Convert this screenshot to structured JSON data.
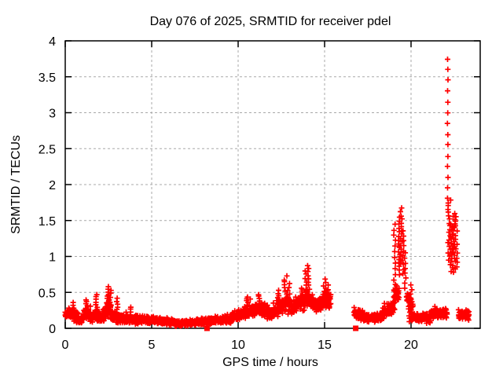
{
  "window": {
    "background": "#ffffff"
  },
  "chart_data": {
    "type": "scatter",
    "title": "Day 076 of 2025, SRMTID for receiver pdel",
    "xlabel": "GPS time / hours",
    "ylabel": "SRMTID / TECUs",
    "xlim": [
      0,
      24
    ],
    "ylim": [
      0,
      4
    ],
    "xticks": [
      0,
      5,
      10,
      15,
      20
    ],
    "xtick_labels": [
      "0",
      "5",
      "10",
      "15",
      "20"
    ],
    "yticks": [
      0,
      0.5,
      1,
      1.5,
      2,
      2.5,
      3,
      3.5,
      4
    ],
    "ytick_labels": [
      "0",
      "0.5",
      "1",
      "1.5",
      "2",
      "2.5",
      "3",
      "3.5",
      "4"
    ],
    "grid": true,
    "grid_style": "dashed",
    "grid_color": "#a8a8a8",
    "border_color": "#000000",
    "text_color": "#000000",
    "legend": "none",
    "series": [
      {
        "name": "srmtid-plus-markers",
        "marker": "plus",
        "color": "#ff0000",
        "comment_units": "bands = [hour_start, hour_end, value_start, value_end, half_spread]; spikes = [hour, value_low, value_high, n_points, hour_jitter]",
        "bands": [
          [
            0.0,
            0.35,
            0.2,
            0.22,
            0.08
          ],
          [
            0.35,
            0.75,
            0.22,
            0.12,
            0.09
          ],
          [
            0.75,
            1.05,
            0.1,
            0.14,
            0.06
          ],
          [
            1.05,
            1.45,
            0.18,
            0.22,
            0.1
          ],
          [
            1.45,
            1.75,
            0.14,
            0.18,
            0.08
          ],
          [
            1.75,
            2.1,
            0.2,
            0.14,
            0.1
          ],
          [
            2.1,
            2.45,
            0.14,
            0.26,
            0.12
          ],
          [
            2.45,
            2.75,
            0.26,
            0.18,
            0.12
          ],
          [
            2.75,
            3.3,
            0.16,
            0.14,
            0.08
          ],
          [
            3.3,
            4.2,
            0.14,
            0.12,
            0.07
          ],
          [
            4.2,
            5.5,
            0.12,
            0.11,
            0.06
          ],
          [
            5.5,
            6.4,
            0.1,
            0.08,
            0.05
          ],
          [
            6.4,
            7.6,
            0.07,
            0.08,
            0.05
          ],
          [
            7.6,
            8.6,
            0.09,
            0.1,
            0.05
          ],
          [
            8.6,
            9.6,
            0.11,
            0.13,
            0.06
          ],
          [
            9.6,
            10.3,
            0.15,
            0.2,
            0.08
          ],
          [
            10.3,
            11.0,
            0.22,
            0.26,
            0.1
          ],
          [
            11.0,
            11.7,
            0.26,
            0.24,
            0.11
          ],
          [
            11.7,
            12.2,
            0.2,
            0.24,
            0.09
          ],
          [
            12.2,
            12.6,
            0.26,
            0.32,
            0.12
          ],
          [
            12.6,
            13.1,
            0.34,
            0.3,
            0.14
          ],
          [
            13.1,
            13.6,
            0.3,
            0.36,
            0.12
          ],
          [
            13.6,
            14.15,
            0.38,
            0.42,
            0.16
          ],
          [
            14.15,
            14.65,
            0.36,
            0.34,
            0.12
          ],
          [
            14.65,
            15.35,
            0.36,
            0.4,
            0.14
          ],
          [
            16.7,
            17.35,
            0.22,
            0.16,
            0.08
          ],
          [
            17.35,
            18.35,
            0.14,
            0.16,
            0.07
          ],
          [
            18.35,
            18.95,
            0.2,
            0.3,
            0.1
          ],
          [
            18.95,
            19.3,
            0.35,
            0.55,
            0.18
          ],
          [
            19.75,
            20.1,
            0.45,
            0.25,
            0.15
          ],
          [
            20.1,
            21.1,
            0.16,
            0.13,
            0.07
          ],
          [
            21.1,
            21.85,
            0.2,
            0.22,
            0.08
          ],
          [
            21.85,
            22.08,
            0.22,
            0.2,
            0.07
          ],
          [
            22.75,
            23.35,
            0.2,
            0.18,
            0.08
          ]
        ],
        "spikes": [
          [
            0.5,
            0.25,
            0.36,
            4,
            0.05
          ],
          [
            1.25,
            0.25,
            0.4,
            6,
            0.06
          ],
          [
            1.82,
            0.25,
            0.47,
            7,
            0.05
          ],
          [
            2.42,
            0.3,
            0.57,
            10,
            0.1
          ],
          [
            2.58,
            0.3,
            0.52,
            8,
            0.08
          ],
          [
            3.02,
            0.22,
            0.42,
            6,
            0.05
          ],
          [
            3.78,
            0.18,
            0.3,
            4,
            0.05
          ],
          [
            10.55,
            0.3,
            0.44,
            6,
            0.07
          ],
          [
            11.2,
            0.32,
            0.47,
            6,
            0.07
          ],
          [
            12.35,
            0.35,
            0.52,
            6,
            0.06
          ],
          [
            12.75,
            0.4,
            0.72,
            9,
            0.08
          ],
          [
            12.92,
            0.38,
            0.62,
            6,
            0.06
          ],
          [
            13.9,
            0.45,
            0.8,
            8,
            0.06
          ],
          [
            14.02,
            0.5,
            0.88,
            9,
            0.06
          ],
          [
            15.0,
            0.42,
            0.68,
            7,
            0.07
          ],
          [
            15.2,
            0.38,
            0.6,
            5,
            0.05
          ],
          [
            19.05,
            0.45,
            1.45,
            14,
            0.05
          ],
          [
            19.3,
            0.75,
            1.55,
            16,
            0.06
          ],
          [
            19.42,
            0.9,
            1.67,
            16,
            0.06
          ],
          [
            19.55,
            0.75,
            1.35,
            10,
            0.05
          ],
          [
            19.66,
            0.55,
            1.05,
            8,
            0.05
          ],
          [
            19.9,
            0.1,
            0.3,
            6,
            0.06
          ],
          [
            20.0,
            0.1,
            0.6,
            9,
            0.05
          ],
          [
            22.12,
            1.8,
            3.75,
            14,
            0.02
          ],
          [
            22.28,
            1.78,
            1.78,
            1,
            0.02
          ],
          [
            22.2,
            0.95,
            1.75,
            18,
            0.07
          ],
          [
            22.35,
            0.8,
            1.45,
            16,
            0.08
          ],
          [
            22.5,
            0.78,
            1.6,
            18,
            0.08
          ],
          [
            22.62,
            0.85,
            1.55,
            12,
            0.06
          ]
        ],
        "data_gaps_hours": [
          [
            15.35,
            16.7
          ]
        ]
      },
      {
        "name": "flag-square-markers",
        "marker": "filled-square",
        "color": "#ff0000",
        "points": [
          [
            8.2,
            0
          ],
          [
            16.8,
            0
          ]
        ]
      }
    ]
  }
}
